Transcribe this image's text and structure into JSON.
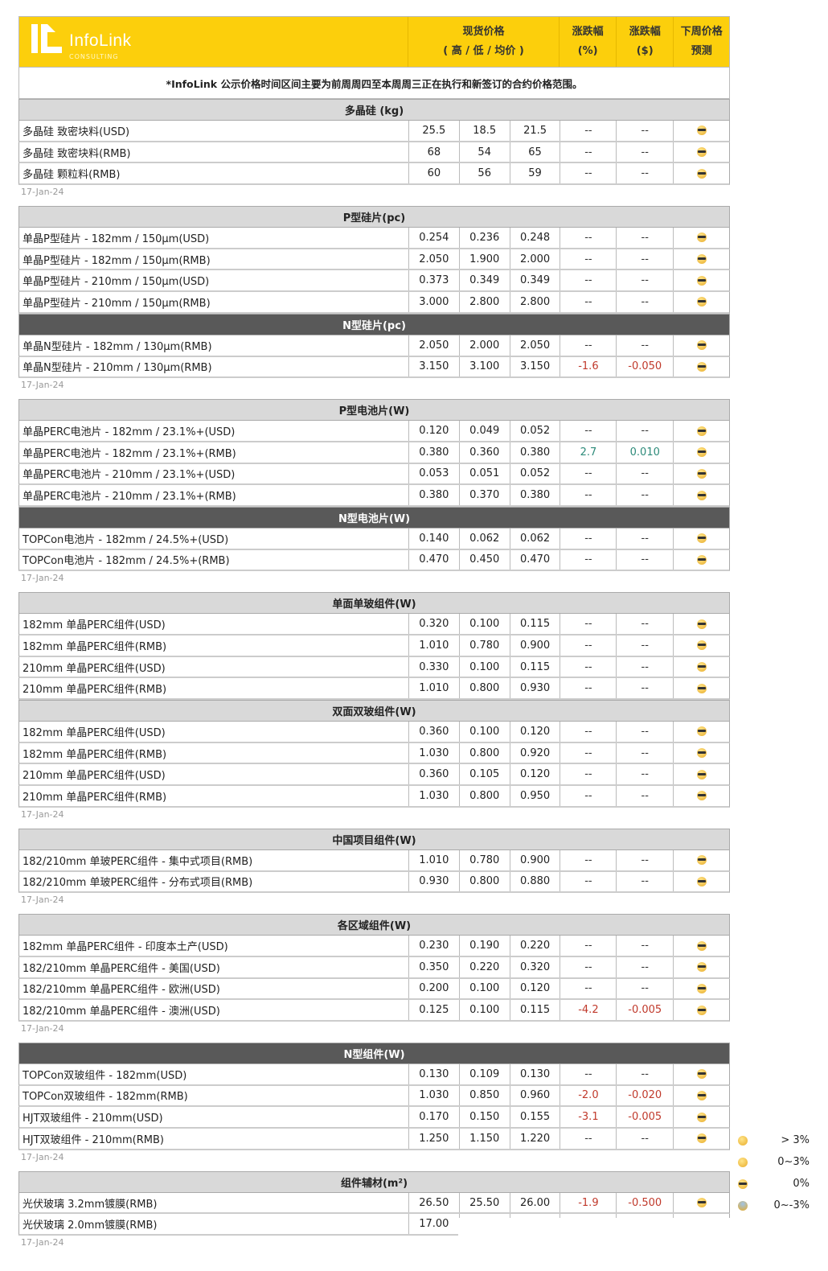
{
  "header": {
    "brand": "InfoLink",
    "brand_sub": "CONSULTING",
    "spot_price": "现货价格",
    "spot_sub": "( 高 / 低 / 均价 )",
    "change_pct": "涨跌幅",
    "change_pct_unit": "(%)",
    "change_usd": "涨跌幅",
    "change_usd_unit": "($)",
    "forecast": "下周价格",
    "forecast_sub": "预测"
  },
  "note": "*InfoLink 公示价格时间区间主要为前周周四至本周周三正在执行和新签订的合约价格范围。",
  "colors": {
    "header_yellow": "#fccf0c",
    "section_light": "#d9d9d9",
    "section_dark": "#595959",
    "negative": "#c0392b",
    "positive": "#2e8b7a"
  },
  "groups": [
    {
      "date": "17-Jan-24",
      "blocks": [
        {
          "title": "多晶硅 (kg)",
          "style": "light",
          "rows": [
            [
              "多晶硅 致密块料(USD)",
              "25.5",
              "18.5",
              "21.5",
              "--",
              "--",
              "cool"
            ],
            [
              "多晶硅 致密块料(RMB)",
              "68",
              "54",
              "65",
              "--",
              "--",
              "cool"
            ],
            [
              "多晶硅 颗粒料(RMB)",
              "60",
              "56",
              "59",
              "--",
              "--",
              "cool"
            ]
          ]
        }
      ]
    },
    {
      "date": "17-Jan-24",
      "blocks": [
        {
          "title": "P型硅片(pc)",
          "style": "light",
          "rows": [
            [
              "单晶P型硅片 - 182mm / 150μm(USD)",
              "0.254",
              "0.236",
              "0.248",
              "--",
              "--",
              "cool"
            ],
            [
              "单晶P型硅片 - 182mm / 150μm(RMB)",
              "2.050",
              "1.900",
              "2.000",
              "--",
              "--",
              "cool"
            ],
            [
              "单晶P型硅片 - 210mm / 150μm(USD)",
              "0.373",
              "0.349",
              "0.349",
              "--",
              "--",
              "cool"
            ],
            [
              "单晶P型硅片 - 210mm / 150μm(RMB)",
              "3.000",
              "2.800",
              "2.800",
              "--",
              "--",
              "cool"
            ]
          ]
        },
        {
          "title": "N型硅片(pc)",
          "style": "dark",
          "rows": [
            [
              "单晶N型硅片 - 182mm / 130μm(RMB)",
              "2.050",
              "2.000",
              "2.050",
              "--",
              "--",
              "cool"
            ],
            [
              "单晶N型硅片 - 210mm / 130μm(RMB)",
              "3.150",
              "3.100",
              "3.150",
              "-1.6",
              "-0.050",
              "cool"
            ]
          ]
        }
      ]
    },
    {
      "date": "17-Jan-24",
      "blocks": [
        {
          "title": "P型电池片(W)",
          "style": "light",
          "rows": [
            [
              "单晶PERC电池片 - 182mm / 23.1%+(USD)",
              "0.120",
              "0.049",
              "0.052",
              "--",
              "--",
              "cool"
            ],
            [
              "单晶PERC电池片 - 182mm / 23.1%+(RMB)",
              "0.380",
              "0.360",
              "0.380",
              "2.7",
              "0.010",
              "cool"
            ],
            [
              "单晶PERC电池片 - 210mm / 23.1%+(USD)",
              "0.053",
              "0.051",
              "0.052",
              "--",
              "--",
              "cool"
            ],
            [
              "单晶PERC电池片 - 210mm / 23.1%+(RMB)",
              "0.380",
              "0.370",
              "0.380",
              "--",
              "--",
              "cool"
            ]
          ]
        },
        {
          "title": "N型电池片(W)",
          "style": "dark",
          "rows": [
            [
              "TOPCon电池片 - 182mm / 24.5%+(USD)",
              "0.140",
              "0.062",
              "0.062",
              "--",
              "--",
              "cool"
            ],
            [
              "TOPCon电池片 - 182mm / 24.5%+(RMB)",
              "0.470",
              "0.450",
              "0.470",
              "--",
              "--",
              "cool"
            ]
          ]
        }
      ]
    },
    {
      "date": "17-Jan-24",
      "blocks": [
        {
          "title": "单面单玻组件(W)",
          "style": "light",
          "rows": [
            [
              "182mm 单晶PERC组件(USD)",
              "0.320",
              "0.100",
              "0.115",
              "--",
              "--",
              "cool"
            ],
            [
              "182mm 单晶PERC组件(RMB)",
              "1.010",
              "0.780",
              "0.900",
              "--",
              "--",
              "cool"
            ],
            [
              "210mm 单晶PERC组件(USD)",
              "0.330",
              "0.100",
              "0.115",
              "--",
              "--",
              "cool"
            ],
            [
              "210mm 单晶PERC组件(RMB)",
              "1.010",
              "0.800",
              "0.930",
              "--",
              "--",
              "cool"
            ]
          ]
        },
        {
          "title": "双面双玻组件(W)",
          "style": "light",
          "rows": [
            [
              "182mm 单晶PERC组件(USD)",
              "0.360",
              "0.100",
              "0.120",
              "--",
              "--",
              "cool"
            ],
            [
              "182mm 单晶PERC组件(RMB)",
              "1.030",
              "0.800",
              "0.920",
              "--",
              "--",
              "cool"
            ],
            [
              "210mm 单晶PERC组件(USD)",
              "0.360",
              "0.105",
              "0.120",
              "--",
              "--",
              "cool"
            ],
            [
              "210mm 单晶PERC组件(RMB)",
              "1.030",
              "0.800",
              "0.950",
              "--",
              "--",
              "cool"
            ]
          ]
        }
      ]
    },
    {
      "date": "17-Jan-24",
      "blocks": [
        {
          "title": "中国项目组件(W)",
          "style": "light",
          "rows": [
            [
              "182/210mm 单玻PERC组件 - 集中式项目(RMB)",
              "1.010",
              "0.780",
              "0.900",
              "--",
              "--",
              "cool"
            ],
            [
              "182/210mm 单玻PERC组件 - 分布式项目(RMB)",
              "0.930",
              "0.800",
              "0.880",
              "--",
              "--",
              "cool"
            ]
          ]
        }
      ]
    },
    {
      "date": "17-Jan-24",
      "blocks": [
        {
          "title": "各区域组件(W)",
          "style": "light",
          "rows": [
            [
              "182mm 单晶PERC组件 - 印度本土产(USD)",
              "0.230",
              "0.190",
              "0.220",
              "--",
              "--",
              "cool"
            ],
            [
              "182/210mm 单晶PERC组件 - 美国(USD)",
              "0.350",
              "0.220",
              "0.320",
              "--",
              "--",
              "cool"
            ],
            [
              "182/210mm 单晶PERC组件 - 欧洲(USD)",
              "0.200",
              "0.100",
              "0.120",
              "--",
              "--",
              "cool"
            ],
            [
              "182/210mm 单晶PERC组件 - 澳洲(USD)",
              "0.125",
              "0.100",
              "0.115",
              "-4.2",
              "-0.005",
              "cool"
            ]
          ]
        }
      ]
    },
    {
      "date": "17-Jan-24",
      "blocks": [
        {
          "title": "N型组件(W)",
          "style": "dark",
          "rows": [
            [
              "TOPCon双玻组件 - 182mm(USD)",
              "0.130",
              "0.109",
              "0.130",
              "--",
              "--",
              "cool"
            ],
            [
              "TOPCon双玻组件 - 182mm(RMB)",
              "1.030",
              "0.850",
              "0.960",
              "-2.0",
              "-0.020",
              "cool"
            ],
            [
              "HJT双玻组件 - 210mm(USD)",
              "0.170",
              "0.150",
              "0.155",
              "-3.1",
              "-0.005",
              "cool"
            ],
            [
              "HJT双玻组件 - 210mm(RMB)",
              "1.250",
              "1.150",
              "1.220",
              "--",
              "--",
              "cool"
            ]
          ]
        }
      ]
    },
    {
      "date": "17-Jan-24",
      "blocks": [
        {
          "title": "组件辅材(m²)",
          "style": "light",
          "rows": [
            [
              "光伏玻璃 3.2mm镀膜(RMB)",
              "26.50",
              "25.50",
              "26.00",
              "-1.9",
              "-0.500",
              "cool"
            ],
            [
              "光伏玻璃 2.0mm镀膜(RMB)",
              "17.00",
              "",
              "",
              "",
              "",
              ""
            ]
          ]
        }
      ]
    }
  ],
  "legend": [
    {
      "icon": "grin",
      "label": "> 3%"
    },
    {
      "icon": "smile",
      "label": "0~3%"
    },
    {
      "icon": "cool",
      "label": "0%"
    },
    {
      "icon": "fear",
      "label": "0~-3%"
    },
    {
      "icon": "",
      "label": "%"
    }
  ]
}
